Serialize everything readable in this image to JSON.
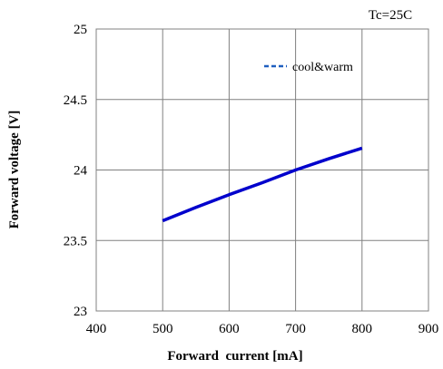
{
  "chart_data": {
    "type": "line",
    "title": "",
    "annotation": "Tc=25C",
    "xlabel": "Forward  current [mA]",
    "ylabel": "Forward voltage [V]",
    "xlim": [
      400,
      900
    ],
    "ylim": [
      23,
      25
    ],
    "x_ticks": [
      "400",
      "500",
      "600",
      "700",
      "800",
      "900"
    ],
    "y_ticks": [
      "23",
      "23.5",
      "24",
      "24.5",
      "25"
    ],
    "grid": true,
    "legend_position": "top-right",
    "series": [
      {
        "name": "cool&warm",
        "color": "#0000cc",
        "legend_color": "#1f5fbf",
        "x": [
          500,
          550,
          600,
          650,
          700,
          750,
          800
        ],
        "y": [
          23.64,
          23.735,
          23.825,
          23.91,
          24.0,
          24.08,
          24.155
        ]
      }
    ]
  }
}
